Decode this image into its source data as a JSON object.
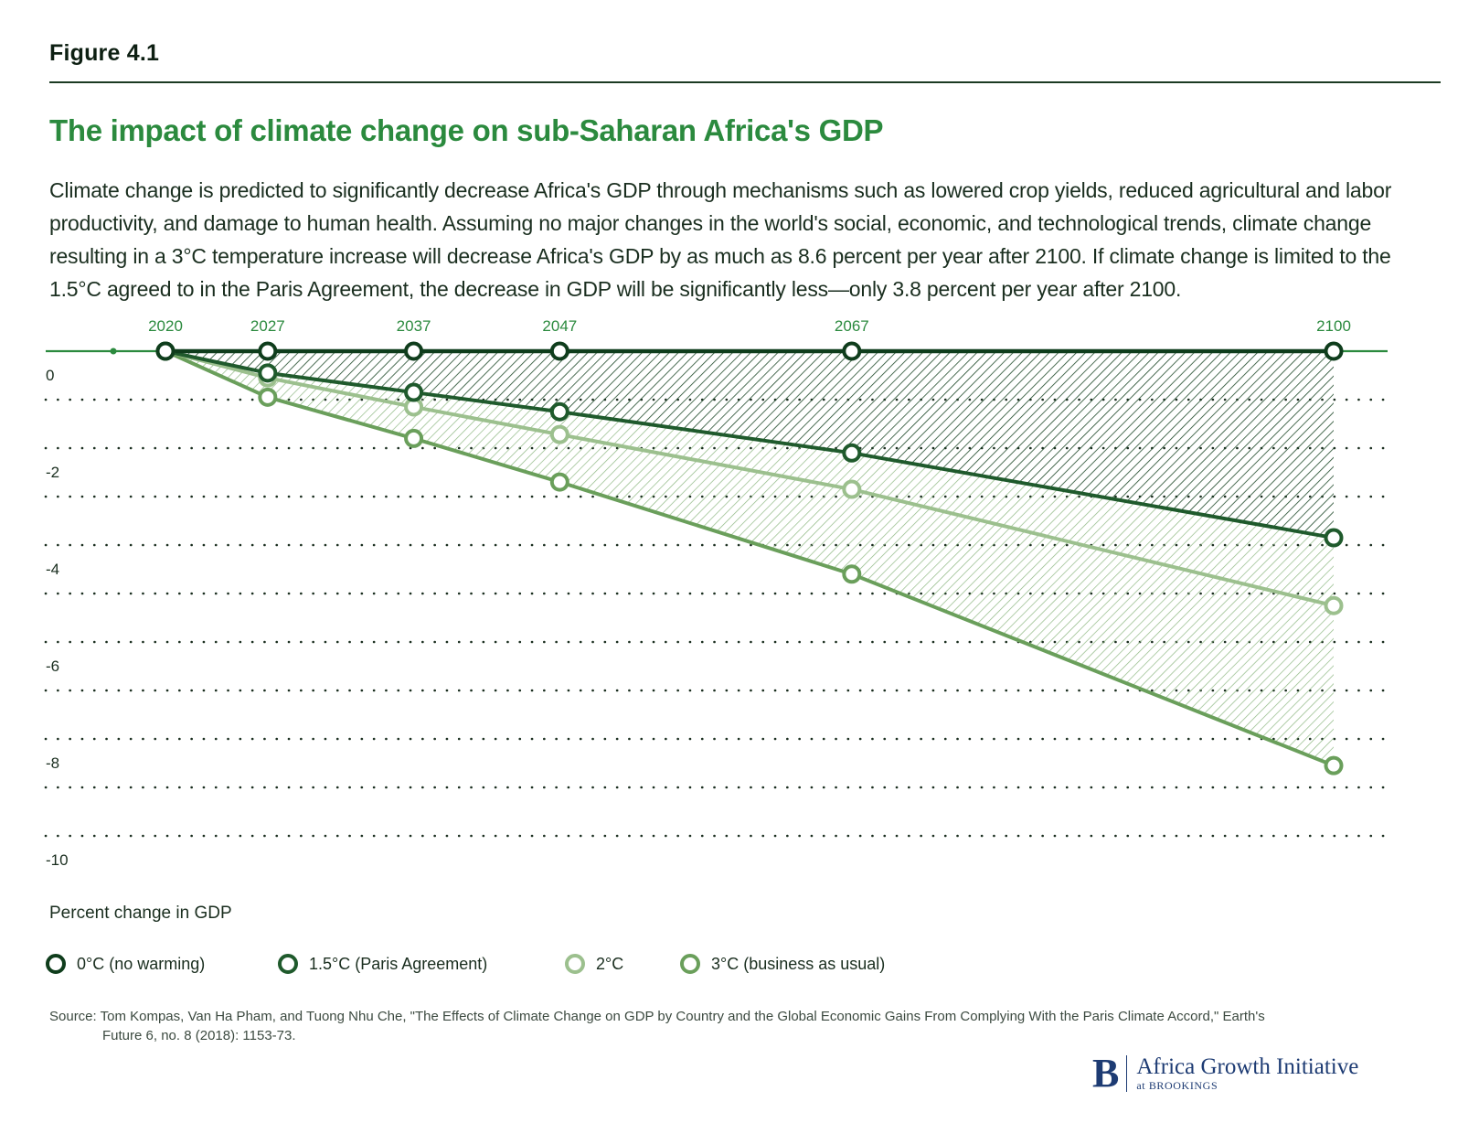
{
  "figure_label": "Figure 4.1",
  "title": "The impact of climate change on sub-Saharan Africa's GDP",
  "description": "Climate change is predicted to significantly decrease Africa's GDP through mechanisms such as lowered crop yields, reduced agricultural and labor productivity, and damage to human health. Assuming no major changes in the world's social, economic, and technological trends, climate change resulting in a 3°C temperature increase will decrease Africa's GDP by as much as 8.6 percent per year after 2100. If climate change is limited to the 1.5°C agreed to in the Paris Agreement, the decrease in GDP will be significantly less—only 3.8 percent per year after 2100.",
  "chart_data": {
    "type": "line",
    "x": [
      2020,
      2027,
      2037,
      2047,
      2067,
      2100
    ],
    "xtick_labels": [
      "2020",
      "2027",
      "2037",
      "2047",
      "2067",
      "2100"
    ],
    "ylabel": "Percent change in GDP",
    "ylim": [
      -10,
      0
    ],
    "yticks": [
      0,
      -2,
      -4,
      -6,
      -8,
      -10
    ],
    "ytick_labels": [
      "0",
      "-2",
      "-4",
      "-6",
      "-8",
      "-10"
    ],
    "series": [
      {
        "name": "0°C (no warming)",
        "color": "#0f3d1c",
        "values": [
          0,
          0,
          0,
          0,
          0,
          0
        ]
      },
      {
        "name": "1.5°C (Paris Agreement)",
        "color": "#1f5a2c",
        "values": [
          0,
          -0.45,
          -0.85,
          -1.25,
          -2.1,
          -3.85
        ]
      },
      {
        "name": "2°C",
        "color": "#9cc08e",
        "values": [
          0,
          -0.55,
          -1.15,
          -1.72,
          -2.85,
          -5.25
        ]
      },
      {
        "name": "3°C (business as usual)",
        "color": "#6a9f5b",
        "values": [
          0,
          -0.95,
          -1.8,
          -2.7,
          -4.6,
          -8.55
        ]
      }
    ]
  },
  "source": {
    "label": "Source:",
    "line1": "Tom Kompas, Van Ha Pham, and Tuong Nhu Che, \"The Effects of Climate Change on GDP by Country and the Global Economic Gains From Complying With the Paris Climate Accord,\" Earth's",
    "line2": "Future 6, no. 8 (2018): 1153-73."
  },
  "brand": {
    "logo_letter": "B",
    "name": "Africa Growth Initiative",
    "sub": "at BROOKINGS"
  }
}
